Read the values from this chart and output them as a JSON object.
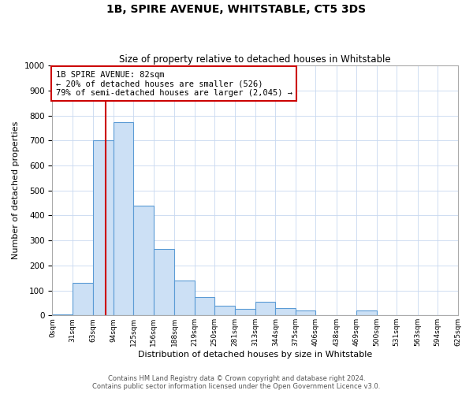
{
  "title1": "1B, SPIRE AVENUE, WHITSTABLE, CT5 3DS",
  "title2": "Size of property relative to detached houses in Whitstable",
  "xlabel": "Distribution of detached houses by size in Whitstable",
  "ylabel": "Number of detached properties",
  "bin_edges": [
    0,
    31,
    63,
    94,
    125,
    156,
    188,
    219,
    250,
    281,
    313,
    344,
    375,
    406,
    438,
    469,
    500,
    531,
    563,
    594,
    625
  ],
  "bar_heights": [
    5,
    130,
    700,
    775,
    440,
    265,
    140,
    75,
    40,
    25,
    55,
    30,
    20,
    0,
    0,
    20,
    0,
    0,
    0,
    0
  ],
  "bar_color": "#cce0f5",
  "bar_edge_color": "#5b9bd5",
  "property_sqm": 82,
  "vline_color": "#cc0000",
  "annotation_text": "1B SPIRE AVENUE: 82sqm\n← 20% of detached houses are smaller (526)\n79% of semi-detached houses are larger (2,045) →",
  "annotation_box_color": "#cc0000",
  "ylim": [
    0,
    1000
  ],
  "yticks": [
    0,
    100,
    200,
    300,
    400,
    500,
    600,
    700,
    800,
    900,
    1000
  ],
  "footnote1": "Contains HM Land Registry data © Crown copyright and database right 2024.",
  "footnote2": "Contains public sector information licensed under the Open Government Licence v3.0.",
  "background_color": "#ffffff",
  "grid_color": "#c8d8f0",
  "figsize": [
    6.0,
    5.0
  ],
  "dpi": 100
}
